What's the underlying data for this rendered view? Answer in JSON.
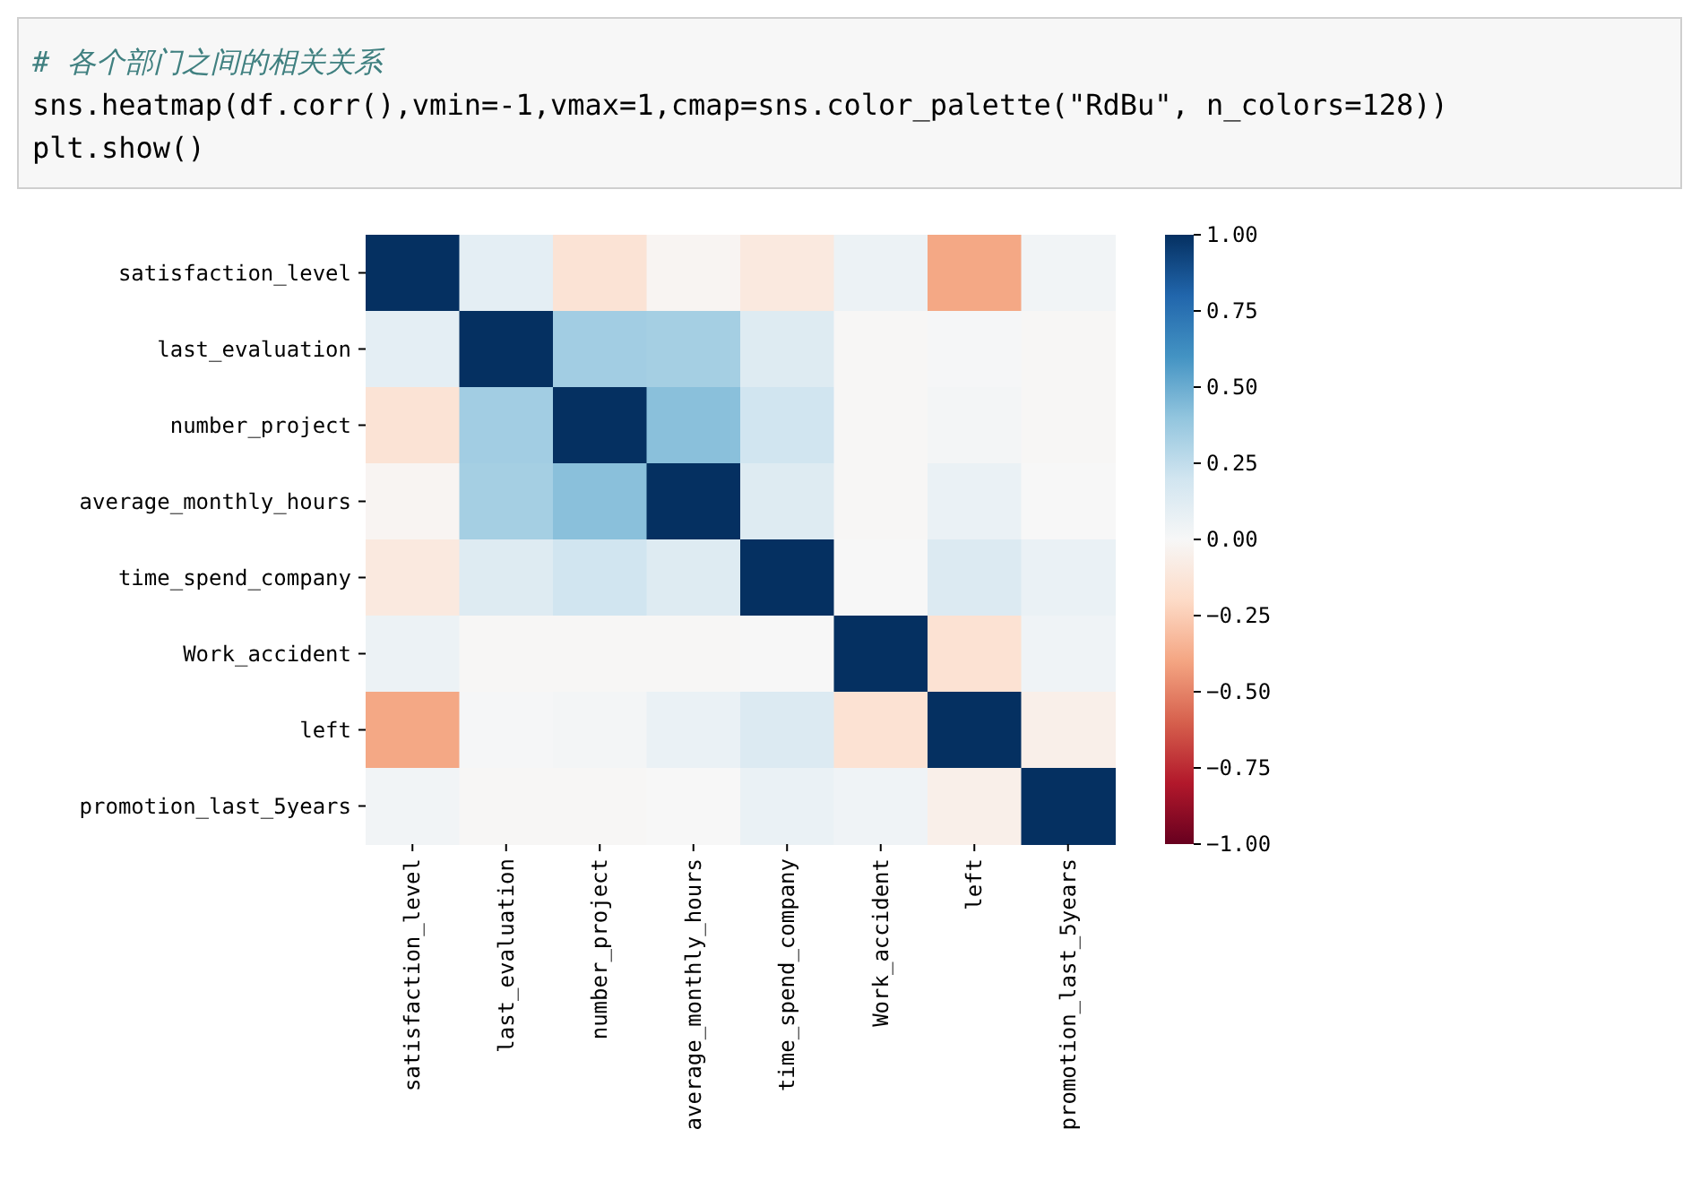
{
  "chart_data": {
    "type": "heatmap",
    "annotations": [
      "# 各个部门之间的相关关系",
      "sns.heatmap(df.corr(),vmin=-1,vmax=1,cmap=sns.color_palette(\"RdBu\", n_colors=128))",
      "plt.show()"
    ],
    "categories": [
      "satisfaction_level",
      "last_evaluation",
      "number_project",
      "average_monthly_hours",
      "time_spend_company",
      "Work_accident",
      "left",
      "promotion_last_5years"
    ],
    "y_categories": [
      "satisfaction_level",
      "last_evaluation",
      "number_project",
      "average_monthly_hours",
      "time_spend_company",
      "Work_accident",
      "left",
      "promotion_last_5years"
    ],
    "cells": [
      [
        1,
        0.1,
        -0.14,
        -0.02,
        -0.1,
        0.06,
        -0.39,
        0.03
      ],
      [
        0.1,
        1,
        0.35,
        0.34,
        0.13,
        -0.01,
        0.01,
        -0.01
      ],
      [
        -0.14,
        0.35,
        1,
        0.42,
        0.2,
        -0.01,
        0.02,
        -0.01
      ],
      [
        -0.02,
        0.34,
        0.42,
        1,
        0.13,
        -0.01,
        0.07,
        0
      ],
      [
        -0.1,
        0.13,
        0.2,
        0.13,
        1,
        0,
        0.14,
        0.07
      ],
      [
        0.06,
        -0.01,
        -0.01,
        -0.01,
        0,
        1,
        -0.15,
        0.04
      ],
      [
        -0.39,
        0.01,
        0.02,
        0.07,
        0.14,
        -0.15,
        1,
        -0.06
      ],
      [
        0.03,
        -0.01,
        -0.01,
        0,
        0.07,
        0.04,
        -0.06,
        1
      ]
    ],
    "clim": [
      -1,
      1
    ],
    "cticks": [
      {
        "value": 1,
        "label": "1.00"
      },
      {
        "value": 0.75,
        "label": "0.75"
      },
      {
        "value": 0.5,
        "label": "0.50"
      },
      {
        "value": 0.25,
        "label": "0.25"
      },
      {
        "value": 0,
        "label": "0.00"
      },
      {
        "value": -0.25,
        "label": "−0.25"
      },
      {
        "value": -0.5,
        "label": "−0.50"
      },
      {
        "value": -0.75,
        "label": "−0.75"
      },
      {
        "value": -1,
        "label": "−1.00"
      }
    ]
  }
}
